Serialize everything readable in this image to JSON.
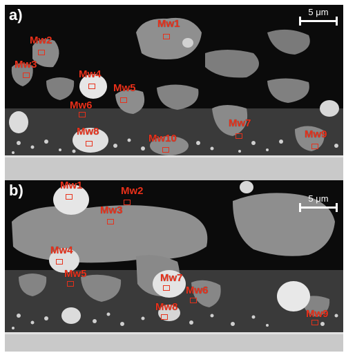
{
  "panels": [
    {
      "label": "a)",
      "scale_bar": "5 μm",
      "markers": [
        "Mw1",
        "Mw2",
        "Mw3",
        "Mw4",
        "Mw5",
        "Mw6",
        "Mw8",
        "Mw10",
        "Mw7",
        "Mw9"
      ]
    },
    {
      "label": "b)",
      "scale_bar": "5 μm",
      "markers": [
        "Mw1",
        "Mw2",
        "Mw3",
        "Mw4",
        "Mw5",
        "Mw7",
        "Mw6",
        "Mw8",
        "Mw9"
      ]
    }
  ],
  "colors": {
    "marker": "#e8301a",
    "substrate": "#c9c9c9",
    "matrix": "#8f8f8f",
    "bright_phase": "#e6e6e6",
    "pore": "#0b0b0b"
  }
}
